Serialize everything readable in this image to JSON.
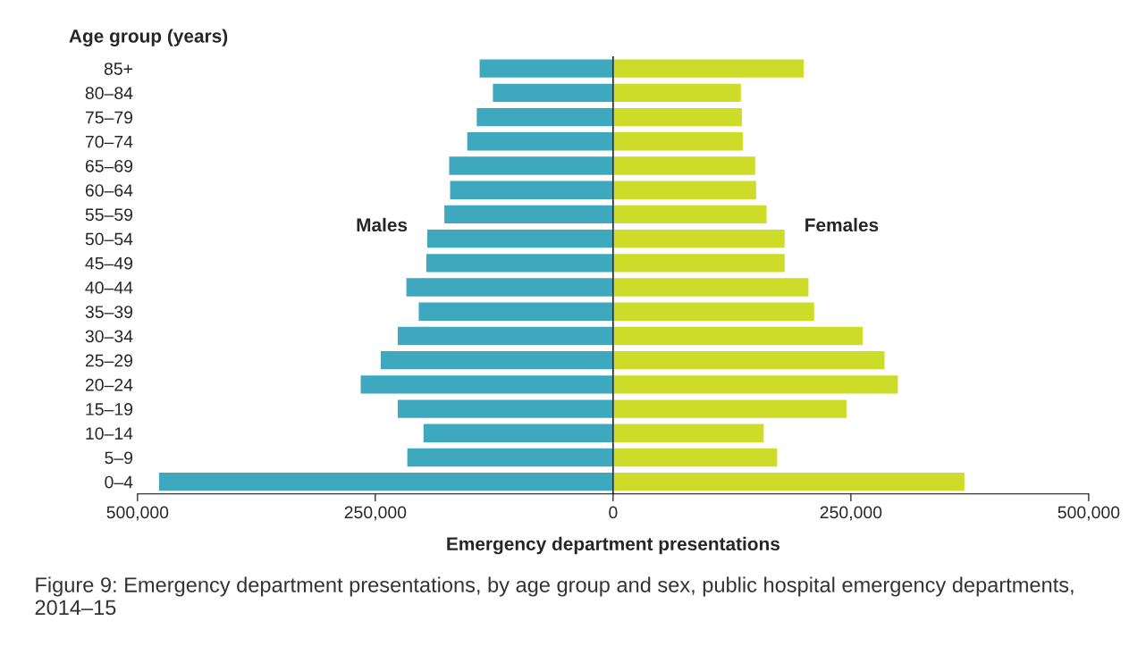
{
  "chart_data": {
    "type": "bar",
    "orientation": "horizontal",
    "xlabel": "Emergency department presentations",
    "ylabel": "Age group (years)",
    "categories": [
      "85+",
      "80–84",
      "75–79",
      "70–74",
      "65–69",
      "60–64",
      "55–59",
      "50–54",
      "45–49",
      "40–44",
      "35–39",
      "30–34",
      "25–29",
      "20–24",
      "15–19",
      "10–14",
      "5–9",
      "0–4"
    ],
    "series": [
      {
        "name": "Males",
        "color": "#3da8be",
        "values": [
          -141000,
          -127000,
          -144000,
          -154000,
          -173000,
          -172000,
          -178000,
          -196000,
          -197000,
          -218000,
          -205000,
          -227000,
          -245000,
          -266000,
          -227000,
          -200000,
          -217000,
          -478000
        ]
      },
      {
        "name": "Females",
        "color": "#cddc29",
        "values": [
          201000,
          135000,
          136000,
          137000,
          150000,
          151000,
          162000,
          181000,
          181000,
          206000,
          212000,
          263000,
          286000,
          300000,
          246000,
          159000,
          173000,
          370000
        ]
      }
    ],
    "xlim": [
      -500000,
      500000
    ],
    "xticks": [
      {
        "value": -500000,
        "label": "500,000"
      },
      {
        "value": -250000,
        "label": "250,000"
      },
      0,
      {
        "value": 250000,
        "label": "250,000"
      },
      {
        "value": 500000,
        "label": "500,000"
      }
    ],
    "ref_lines": [
      {
        "axis": "x",
        "value": 0,
        "color": "#000000"
      }
    ],
    "grid": false,
    "legend": false,
    "stacked": true,
    "annotations": [
      "Figure 9: Emergency department presentations, by age group and sex, public hospital emergency departments, 2014–15"
    ]
  }
}
